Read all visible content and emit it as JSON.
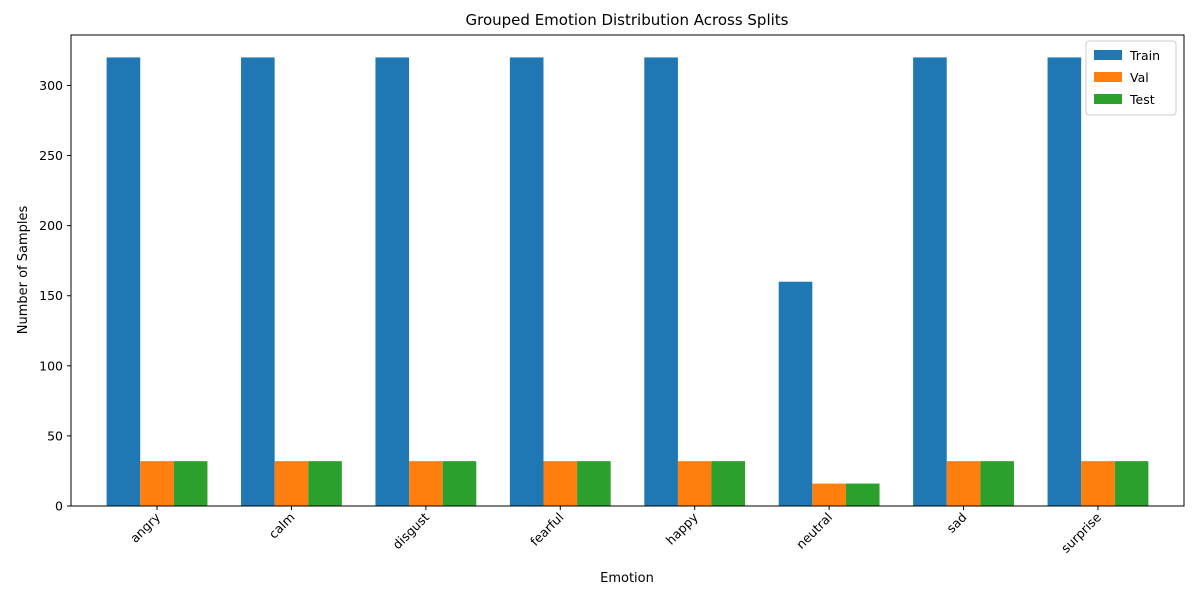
{
  "chart_data": {
    "type": "bar",
    "title": "Grouped Emotion Distribution Across Splits",
    "xlabel": "Emotion",
    "ylabel": "Number of Samples",
    "categories": [
      "angry",
      "calm",
      "disgust",
      "fearful",
      "happy",
      "neutral",
      "sad",
      "surprise"
    ],
    "series": [
      {
        "name": "Train",
        "color": "#1f77b4",
        "values": [
          320,
          320,
          320,
          320,
          320,
          160,
          320,
          320
        ]
      },
      {
        "name": "Val",
        "color": "#ff7f0e",
        "values": [
          32,
          32,
          32,
          32,
          32,
          16,
          32,
          32
        ]
      },
      {
        "name": "Test",
        "color": "#2ca02c",
        "values": [
          32,
          32,
          32,
          32,
          32,
          16,
          32,
          32
        ]
      }
    ],
    "ylim": [
      0,
      336
    ],
    "yticks": [
      0,
      50,
      100,
      150,
      200,
      250,
      300
    ],
    "grid": false,
    "legend_position": "top-right",
    "tick_rotation_deg": 45
  }
}
